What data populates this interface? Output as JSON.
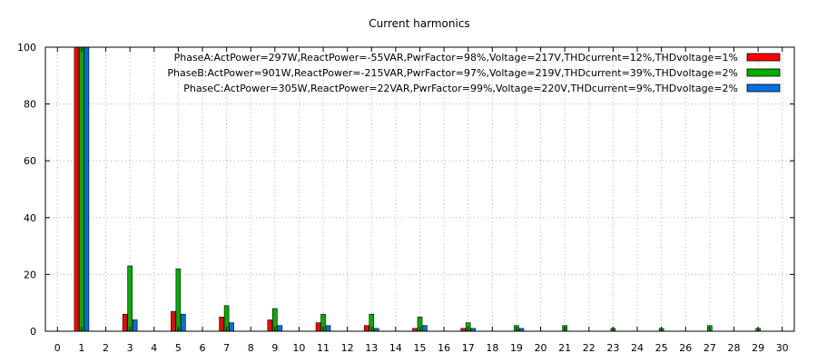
{
  "chart_data": {
    "type": "bar",
    "title": "Current harmonics",
    "xlabel": "",
    "ylabel": "",
    "xlim": [
      -0.5,
      30.5
    ],
    "ylim": [
      0,
      100
    ],
    "y_ticks": [
      0,
      20,
      40,
      60,
      80,
      100
    ],
    "grid": true,
    "legend_position": "top-right",
    "categories": [
      "0",
      "1",
      "2",
      "3",
      "4",
      "5",
      "6",
      "7",
      "8",
      "9",
      "10",
      "11",
      "12",
      "13",
      "14",
      "15",
      "16",
      "17",
      "18",
      "19",
      "20",
      "21",
      "22",
      "23",
      "24",
      "25",
      "26",
      "27",
      "28",
      "29",
      "30"
    ],
    "series": [
      {
        "name": "PhaseA:ActPower=297W,ReactPower=-55VAR,PwrFactor=98%,Voltage=217V,THDcurrent=12%,THDvoltage=1%",
        "color": "#ff0000",
        "values": [
          0,
          100,
          0,
          6,
          0,
          7,
          0,
          5,
          0,
          4,
          0,
          3,
          0,
          2,
          0,
          1,
          0,
          1,
          0,
          0,
          0,
          0,
          0,
          0,
          0,
          0,
          0,
          0,
          0,
          0,
          0
        ]
      },
      {
        "name": "PhaseB:ActPower=901W,ReactPower=-215VAR,PwrFactor=97%,Voltage=219V,THDcurrent=39%,THDvoltage=2%",
        "color": "#00b000",
        "values": [
          0,
          100,
          0,
          23,
          0,
          22,
          0,
          9,
          0,
          8,
          0,
          6,
          0,
          6,
          0,
          5,
          0,
          3,
          0,
          2,
          0,
          2,
          0,
          1,
          0,
          1,
          0,
          2,
          0,
          1,
          0
        ]
      },
      {
        "name": "PhaseC:ActPower=305W,ReactPower=22VAR,PwrFactor=99%,Voltage=220V,THDcurrent=9%,THDvoltage=2%",
        "color": "#0070e0",
        "values": [
          0,
          100,
          0,
          4,
          0,
          6,
          0,
          3,
          0,
          2,
          0,
          2,
          0,
          1,
          0,
          2,
          0,
          1,
          0,
          1,
          0,
          0,
          0,
          0,
          0,
          0,
          0,
          0,
          0,
          0,
          0
        ]
      }
    ]
  }
}
